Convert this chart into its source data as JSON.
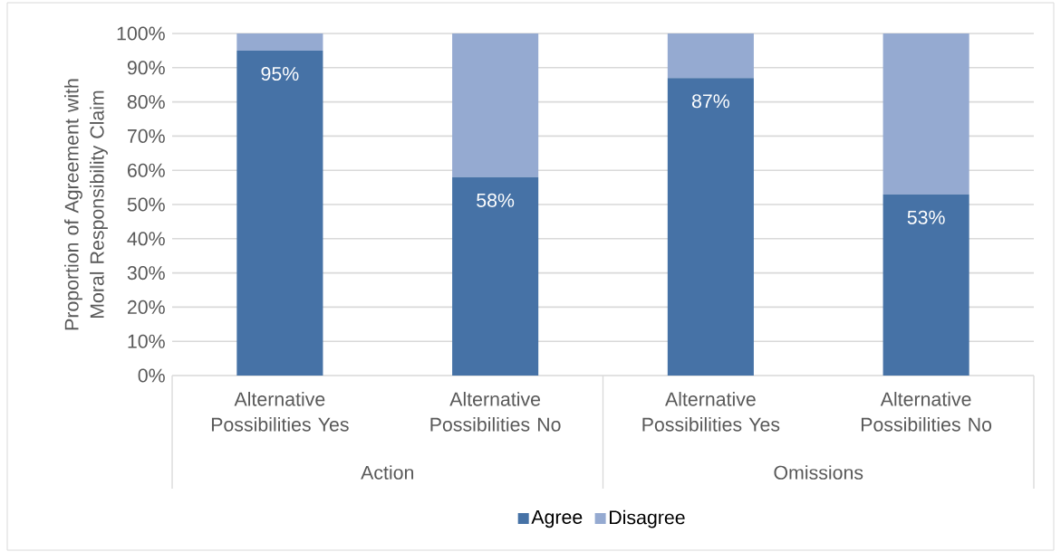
{
  "chart_data": {
    "type": "bar",
    "stacked": true,
    "ylabel": "Proportion of Agreement with Moral Responsibility Claim",
    "categories": [
      "Alternative Possibilities Yes",
      "Alternative Possibilities No",
      "Alternative Possibilities Yes",
      "Alternative Possibilities No"
    ],
    "series": [
      {
        "name": "Agree",
        "color": "#4672a6",
        "values": [
          95,
          58,
          87,
          53
        ],
        "value_labels": [
          "95%",
          "58%",
          "87%",
          "53%"
        ]
      },
      {
        "name": "Disagree",
        "color": "#95aad1",
        "values": [
          5,
          42,
          13,
          47
        ]
      }
    ],
    "annotations": [
      "Action",
      "Omissions"
    ],
    "ylim": [
      0,
      100
    ],
    "yticks": [
      {
        "value": 0,
        "label": "0%"
      },
      {
        "value": 10,
        "label": "10%"
      },
      {
        "value": 20,
        "label": "20%"
      },
      {
        "value": 30,
        "label": "30%"
      },
      {
        "value": 40,
        "label": "40%"
      },
      {
        "value": 50,
        "label": "50%"
      },
      {
        "value": 60,
        "label": "60%"
      },
      {
        "value": 70,
        "label": "70%"
      },
      {
        "value": 80,
        "label": "80%"
      },
      {
        "value": 90,
        "label": "90%"
      },
      {
        "value": 100,
        "label": "100%"
      }
    ],
    "grid": "y",
    "legend": "bottom"
  }
}
